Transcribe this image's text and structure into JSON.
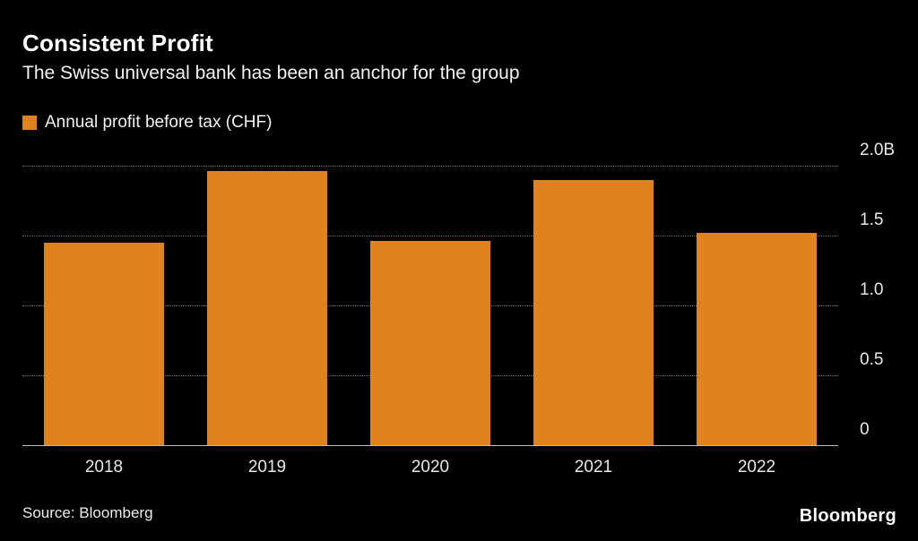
{
  "header": {
    "title": "Consistent Profit",
    "subtitle": "The Swiss universal bank has been an anchor for the group"
  },
  "legend": {
    "label": "Annual profit before tax (CHF)",
    "swatch_color": "#E0831F"
  },
  "chart_data": {
    "type": "bar",
    "title": "Consistent Profit",
    "subtitle": "The Swiss universal bank has been an anchor for the group",
    "series_label": "Annual profit before tax (CHF)",
    "categories": [
      "2018",
      "2019",
      "2020",
      "2021",
      "2022"
    ],
    "values": [
      1.45,
      1.96,
      1.46,
      1.9,
      1.52
    ],
    "unit": "B CHF",
    "xlabel": "",
    "ylabel": "Annual profit before tax (CHF)",
    "ylim": [
      0,
      2.0
    ],
    "yticks": [
      {
        "value": 0,
        "label": "0"
      },
      {
        "value": 0.5,
        "label": "0.5"
      },
      {
        "value": 1.0,
        "label": "1.0"
      },
      {
        "value": 1.5,
        "label": "1.5"
      },
      {
        "value": 2.0,
        "label": "2.0B"
      }
    ],
    "bar_color": "#E0831F",
    "grid": "horizontal-dotted",
    "legend_position": "top-left",
    "y_axis_side": "right"
  },
  "footer": {
    "source": "Source: Bloomberg",
    "brand": "Bloomberg"
  },
  "colors": {
    "background": "#000000",
    "title_text": "#FFFFFF",
    "subtitle_text": "#F2F2F2",
    "axis_text": "#E8E8E8",
    "gridline": "#6E6E6E",
    "baseline": "#BDBDBD",
    "bar": "#E0831F"
  }
}
